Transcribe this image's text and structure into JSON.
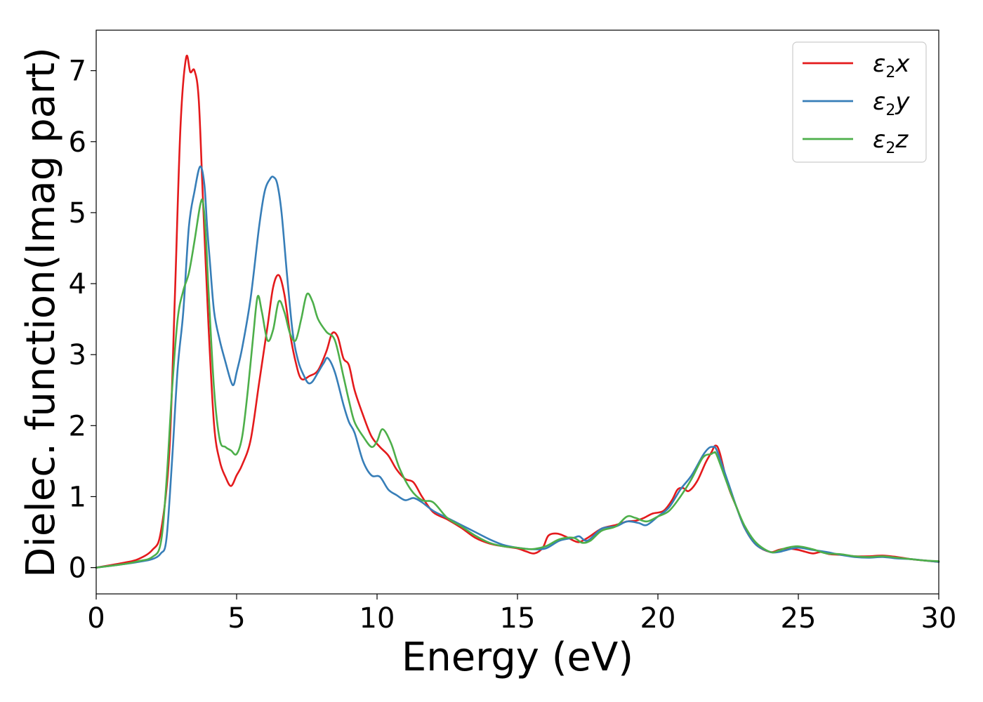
{
  "chart_data": {
    "type": "line",
    "xlabel": "Energy (eV)",
    "ylabel": "Dielec. function(Imag part)",
    "xlim": [
      0,
      30
    ],
    "ylim": [
      -0.37,
      7.57
    ],
    "xticks": [
      0,
      5,
      10,
      15,
      20,
      25,
      30
    ],
    "yticks": [
      0,
      1,
      2,
      3,
      4,
      5,
      6,
      7
    ],
    "grid": false,
    "legend_position": "top-right",
    "series": [
      {
        "name": "ε2x",
        "legend": {
          "base": "ε",
          "sub": "2",
          "var": "x"
        },
        "color": "#e41a1c",
        "x": [
          0,
          1,
          1.5,
          2,
          2.3,
          2.6,
          2.8,
          3.0,
          3.2,
          3.35,
          3.5,
          3.65,
          3.8,
          4.0,
          4.2,
          4.4,
          4.6,
          4.8,
          5.0,
          5.2,
          5.5,
          5.8,
          6.1,
          6.3,
          6.5,
          6.7,
          6.9,
          7.1,
          7.3,
          7.6,
          7.9,
          8.2,
          8.4,
          8.6,
          8.8,
          9.0,
          9.2,
          9.5,
          9.8,
          10.1,
          10.4,
          10.7,
          11.0,
          11.3,
          11.6,
          12.0,
          12.5,
          13.0,
          13.5,
          14.0,
          14.5,
          15.0,
          15.3,
          15.6,
          15.9,
          16.1,
          16.4,
          16.7,
          17.0,
          17.2,
          17.5,
          18.0,
          18.5,
          18.9,
          19.2,
          19.5,
          19.8,
          20.2,
          20.5,
          20.7,
          20.9,
          21.1,
          21.4,
          21.7,
          21.9,
          22.05,
          22.2,
          22.5,
          22.8,
          23.1,
          23.5,
          24.0,
          24.3,
          24.6,
          25.0,
          25.5,
          25.8,
          26.1,
          26.5,
          27.0,
          27.5,
          28.0,
          28.5,
          29.0,
          29.5,
          30.0
        ],
        "y": [
          0.0,
          0.07,
          0.12,
          0.25,
          0.5,
          1.6,
          3.8,
          6.2,
          7.18,
          6.98,
          7.0,
          6.6,
          5.2,
          3.4,
          2.0,
          1.5,
          1.28,
          1.15,
          1.3,
          1.45,
          1.8,
          2.6,
          3.4,
          3.95,
          4.12,
          3.85,
          3.3,
          2.9,
          2.66,
          2.7,
          2.78,
          3.05,
          3.3,
          3.25,
          2.95,
          2.85,
          2.5,
          2.15,
          1.85,
          1.7,
          1.58,
          1.38,
          1.25,
          1.2,
          1.0,
          0.78,
          0.68,
          0.56,
          0.42,
          0.34,
          0.3,
          0.27,
          0.23,
          0.2,
          0.28,
          0.45,
          0.48,
          0.44,
          0.38,
          0.36,
          0.42,
          0.55,
          0.6,
          0.65,
          0.66,
          0.7,
          0.76,
          0.8,
          0.95,
          1.1,
          1.12,
          1.08,
          1.22,
          1.48,
          1.62,
          1.72,
          1.62,
          1.15,
          0.85,
          0.55,
          0.32,
          0.22,
          0.25,
          0.27,
          0.25,
          0.2,
          0.22,
          0.19,
          0.18,
          0.16,
          0.16,
          0.17,
          0.15,
          0.12,
          0.1,
          0.08
        ]
      },
      {
        "name": "ε2y",
        "legend": {
          "base": "ε",
          "sub": "2",
          "var": "y"
        },
        "color": "#377eb8",
        "x": [
          0,
          1,
          1.5,
          2,
          2.3,
          2.5,
          2.7,
          2.9,
          3.1,
          3.3,
          3.5,
          3.7,
          3.85,
          3.95,
          4.05,
          4.2,
          4.4,
          4.6,
          4.8,
          4.9,
          5.0,
          5.2,
          5.5,
          5.8,
          6.0,
          6.2,
          6.32,
          6.45,
          6.6,
          6.8,
          7.0,
          7.2,
          7.4,
          7.55,
          7.7,
          7.9,
          8.1,
          8.25,
          8.5,
          8.8,
          9.0,
          9.2,
          9.5,
          9.8,
          10.1,
          10.4,
          10.7,
          11.0,
          11.3,
          11.6,
          12.0,
          12.5,
          13.0,
          13.5,
          14.0,
          14.5,
          15.0,
          15.5,
          16.0,
          16.5,
          17.0,
          17.2,
          17.5,
          18.0,
          18.5,
          18.9,
          19.3,
          19.6,
          20.0,
          20.4,
          20.8,
          21.2,
          21.6,
          21.8,
          21.95,
          22.1,
          22.5,
          22.8,
          23.1,
          23.5,
          24.0,
          24.3,
          24.6,
          25.0,
          25.5,
          26.0,
          26.5,
          27.0,
          27.5,
          28.0,
          28.5,
          29.0,
          29.5,
          30.0
        ],
        "y": [
          0.0,
          0.05,
          0.08,
          0.12,
          0.2,
          0.4,
          1.5,
          2.8,
          3.6,
          4.8,
          5.3,
          5.65,
          5.4,
          4.8,
          4.3,
          3.6,
          3.2,
          2.9,
          2.62,
          2.58,
          2.75,
          3.1,
          3.8,
          4.8,
          5.3,
          5.48,
          5.5,
          5.4,
          5.0,
          4.1,
          3.3,
          2.9,
          2.7,
          2.6,
          2.62,
          2.75,
          2.88,
          2.95,
          2.75,
          2.3,
          2.05,
          1.9,
          1.5,
          1.3,
          1.28,
          1.1,
          1.02,
          0.95,
          0.98,
          0.92,
          0.8,
          0.7,
          0.6,
          0.5,
          0.4,
          0.32,
          0.28,
          0.26,
          0.27,
          0.38,
          0.42,
          0.44,
          0.38,
          0.55,
          0.58,
          0.65,
          0.63,
          0.6,
          0.72,
          0.85,
          1.1,
          1.3,
          1.58,
          1.68,
          1.7,
          1.65,
          1.2,
          0.85,
          0.55,
          0.32,
          0.22,
          0.22,
          0.25,
          0.28,
          0.25,
          0.22,
          0.18,
          0.15,
          0.14,
          0.15,
          0.13,
          0.12,
          0.1,
          0.08
        ]
      },
      {
        "name": "ε2z",
        "legend": {
          "base": "ε",
          "sub": "2",
          "var": "z"
        },
        "color": "#4daf4a",
        "x": [
          0,
          1,
          1.5,
          2,
          2.3,
          2.5,
          2.7,
          2.9,
          3.1,
          3.3,
          3.5,
          3.7,
          3.8,
          3.9,
          4.0,
          4.2,
          4.4,
          4.6,
          4.8,
          5.0,
          5.2,
          5.4,
          5.6,
          5.75,
          5.9,
          6.1,
          6.3,
          6.5,
          6.7,
          6.9,
          7.1,
          7.3,
          7.5,
          7.7,
          7.9,
          8.2,
          8.5,
          8.8,
          9.0,
          9.2,
          9.5,
          9.8,
          10.0,
          10.2,
          10.5,
          10.8,
          11.2,
          11.6,
          12.0,
          12.5,
          13.0,
          13.5,
          14.0,
          14.5,
          15.0,
          15.5,
          16.0,
          16.5,
          17.0,
          17.3,
          17.6,
          18.0,
          18.5,
          18.9,
          19.2,
          19.6,
          20.0,
          20.4,
          20.8,
          21.2,
          21.6,
          21.9,
          22.0,
          22.1,
          22.5,
          22.8,
          23.1,
          23.5,
          24.0,
          24.3,
          24.6,
          25.0,
          25.5,
          26.0,
          26.5,
          27.0,
          27.5,
          28.0,
          28.5,
          29.0,
          29.5,
          30.0
        ],
        "y": [
          0.0,
          0.05,
          0.09,
          0.15,
          0.35,
          1.2,
          2.5,
          3.5,
          3.9,
          4.15,
          4.6,
          5.1,
          5.15,
          4.7,
          3.9,
          2.5,
          1.8,
          1.7,
          1.65,
          1.6,
          1.85,
          2.5,
          3.3,
          3.82,
          3.6,
          3.2,
          3.35,
          3.75,
          3.6,
          3.3,
          3.2,
          3.5,
          3.85,
          3.75,
          3.5,
          3.32,
          3.2,
          2.7,
          2.35,
          2.05,
          1.85,
          1.7,
          1.78,
          1.95,
          1.75,
          1.4,
          1.1,
          0.95,
          0.92,
          0.7,
          0.58,
          0.45,
          0.35,
          0.3,
          0.28,
          0.26,
          0.3,
          0.4,
          0.42,
          0.35,
          0.38,
          0.52,
          0.58,
          0.72,
          0.7,
          0.65,
          0.72,
          0.8,
          1.0,
          1.25,
          1.55,
          1.6,
          1.62,
          1.58,
          1.15,
          0.85,
          0.58,
          0.35,
          0.22,
          0.24,
          0.28,
          0.3,
          0.26,
          0.2,
          0.19,
          0.16,
          0.15,
          0.16,
          0.14,
          0.12,
          0.1,
          0.09
        ]
      }
    ]
  }
}
